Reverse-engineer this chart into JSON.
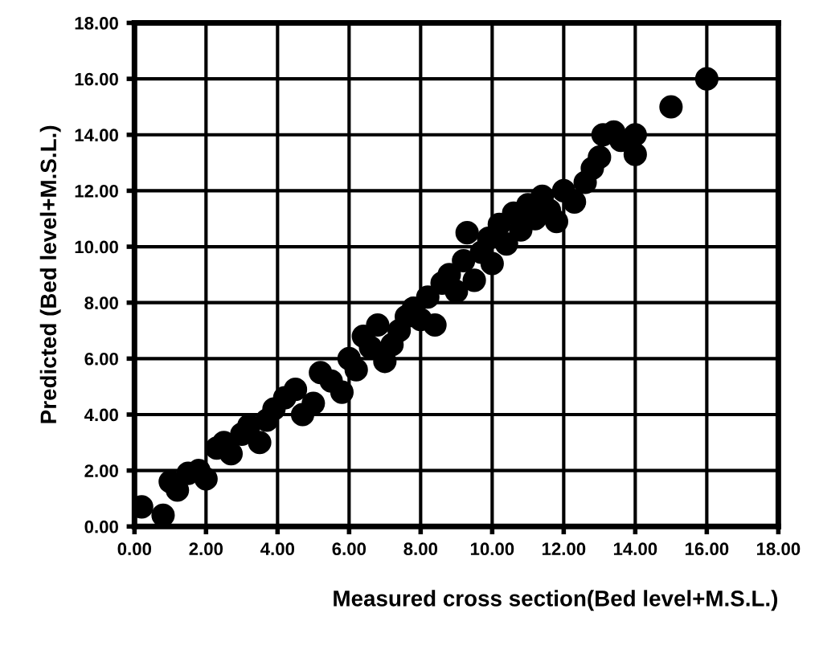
{
  "chart_data": {
    "type": "scatter",
    "xlabel": "Measured cross section(Bed level+M.S.L.)",
    "ylabel": "Predicted (Bed level+M.S.L.)",
    "xlim": [
      0,
      18
    ],
    "ylim": [
      0,
      18
    ],
    "xticks": [
      {
        "value": 0,
        "label": "0.00"
      },
      {
        "value": 2,
        "label": "2.00"
      },
      {
        "value": 4,
        "label": "4.00"
      },
      {
        "value": 6,
        "label": "6.00"
      },
      {
        "value": 8,
        "label": "8.00"
      },
      {
        "value": 10,
        "label": "10.00"
      },
      {
        "value": 12,
        "label": "12.00"
      },
      {
        "value": 14,
        "label": "14.00"
      },
      {
        "value": 16,
        "label": "16.00"
      },
      {
        "value": 18,
        "label": "18.00"
      }
    ],
    "yticks": [
      {
        "value": 0,
        "label": "0.00"
      },
      {
        "value": 2,
        "label": "2.00"
      },
      {
        "value": 4,
        "label": "4.00"
      },
      {
        "value": 6,
        "label": "6.00"
      },
      {
        "value": 8,
        "label": "8.00"
      },
      {
        "value": 10,
        "label": "10.00"
      },
      {
        "value": 12,
        "label": "12.00"
      },
      {
        "value": 14,
        "label": "14.00"
      },
      {
        "value": 16,
        "label": "16.00"
      },
      {
        "value": 18,
        "label": "18.00"
      }
    ],
    "grid": true,
    "marker": "circle",
    "series": [
      {
        "color": "#000000",
        "x": [
          0.2,
          0.8,
          1.0,
          1.2,
          1.5,
          1.8,
          2.0,
          2.3,
          2.5,
          2.7,
          3.0,
          3.2,
          3.5,
          3.7,
          3.9,
          4.2,
          4.5,
          4.7,
          5.0,
          5.2,
          5.5,
          5.8,
          6.0,
          6.2,
          6.4,
          6.6,
          6.8,
          7.0,
          7.2,
          7.4,
          7.6,
          7.8,
          8.0,
          8.2,
          8.4,
          8.6,
          8.8,
          9.0,
          9.2,
          9.3,
          9.5,
          9.7,
          9.9,
          10.0,
          10.2,
          10.4,
          10.6,
          10.8,
          11.0,
          11.2,
          11.4,
          11.6,
          11.8,
          12.0,
          12.3,
          12.6,
          12.8,
          13.0,
          13.1,
          13.4,
          13.6,
          14.0,
          14.0,
          15.0,
          16.0
        ],
        "values": [
          0.7,
          0.4,
          1.6,
          1.3,
          1.9,
          2.0,
          1.7,
          2.8,
          3.0,
          2.6,
          3.3,
          3.6,
          3.0,
          3.8,
          4.2,
          4.6,
          4.9,
          4.0,
          4.4,
          5.5,
          5.2,
          4.8,
          6.0,
          5.6,
          6.8,
          6.4,
          7.2,
          5.9,
          6.5,
          7.0,
          7.5,
          7.8,
          7.4,
          8.2,
          7.2,
          8.7,
          9.0,
          8.4,
          9.5,
          10.5,
          8.8,
          9.8,
          10.3,
          9.4,
          10.8,
          10.1,
          11.2,
          10.6,
          11.5,
          11.0,
          11.8,
          11.3,
          10.9,
          12.0,
          11.6,
          12.3,
          12.8,
          13.2,
          14.0,
          14.1,
          13.8,
          14.0,
          13.3,
          15.0,
          16.0
        ]
      }
    ]
  }
}
